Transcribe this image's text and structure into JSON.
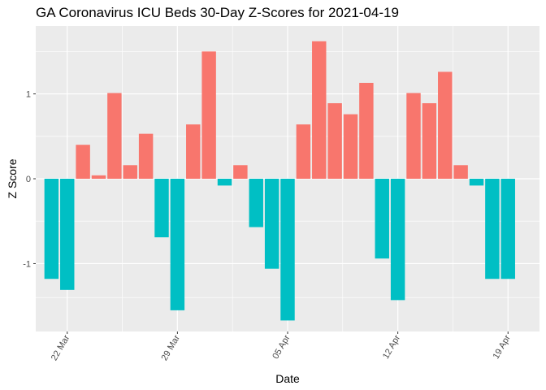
{
  "chart_data": {
    "type": "bar",
    "title": "GA Coronavirus ICU Beds 30-Day Z-Scores for 2021-04-19",
    "xlabel": "Date",
    "ylabel": "Z Score",
    "x_ticks": [
      {
        "date": "2021-03-22",
        "label": "22 Mar"
      },
      {
        "date": "2021-03-29",
        "label": "29 Mar"
      },
      {
        "date": "2021-04-05",
        "label": "05 Apr"
      },
      {
        "date": "2021-04-12",
        "label": "12 Apr"
      },
      {
        "date": "2021-04-19",
        "label": "19 Apr"
      }
    ],
    "y_ticks": [
      -1,
      0,
      1
    ],
    "ylim": [
      -1.8,
      1.8
    ],
    "xlim": [
      "2021-03-20",
      "2021-04-21"
    ],
    "grid": true,
    "legend": "none",
    "colors": {
      "positive": "#F8766D",
      "negative": "#00BFC4",
      "panel": "#EBEBEB",
      "grid": "#FFFFFF"
    },
    "dates": [
      "2021-03-21",
      "2021-03-22",
      "2021-03-23",
      "2021-03-24",
      "2021-03-25",
      "2021-03-26",
      "2021-03-27",
      "2021-03-28",
      "2021-03-29",
      "2021-03-30",
      "2021-03-31",
      "2021-04-01",
      "2021-04-02",
      "2021-04-03",
      "2021-04-04",
      "2021-04-05",
      "2021-04-06",
      "2021-04-07",
      "2021-04-08",
      "2021-04-09",
      "2021-04-10",
      "2021-04-11",
      "2021-04-12",
      "2021-04-13",
      "2021-04-14",
      "2021-04-15",
      "2021-04-16",
      "2021-04-17",
      "2021-04-18",
      "2021-04-19"
    ],
    "values": [
      -1.18,
      -1.31,
      0.4,
      0.04,
      1.01,
      0.16,
      0.53,
      -0.69,
      -1.55,
      0.64,
      1.5,
      -0.08,
      0.16,
      -0.57,
      -1.06,
      -1.67,
      0.64,
      1.62,
      0.89,
      0.76,
      1.13,
      -0.94,
      -1.43,
      1.01,
      0.89,
      1.26,
      0.16,
      -0.08,
      -1.18,
      -1.18
    ]
  }
}
